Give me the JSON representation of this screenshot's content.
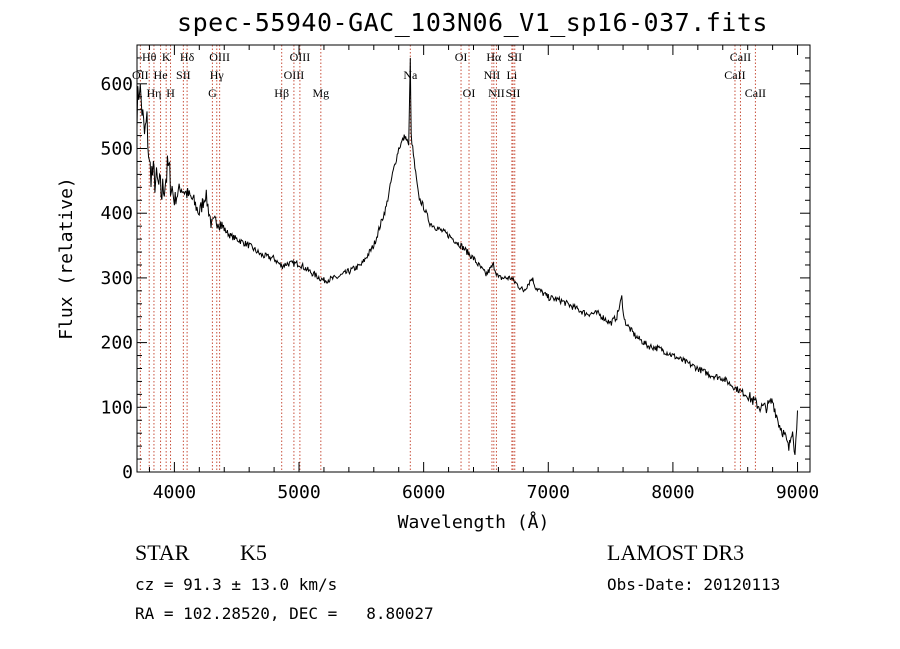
{
  "chart_data": {
    "type": "line",
    "title": "spec-55940-GAC_103N06_V1_sp16-037.fits",
    "xlabel": "Wavelength (Å)",
    "ylabel": "Flux (relative)",
    "xlim": [
      3700,
      9100
    ],
    "ylim": [
      0,
      660
    ],
    "xticks": [
      4000,
      5000,
      6000,
      7000,
      8000,
      9000
    ],
    "yticks": [
      0,
      100,
      200,
      300,
      400,
      500,
      600
    ],
    "grid": false,
    "series": [
      {
        "name": "spectrum",
        "x": [
          3700,
          3720,
          3740,
          3760,
          3780,
          3800,
          3850,
          3900,
          3950,
          4000,
          4050,
          4100,
          4150,
          4200,
          4250,
          4300,
          4350,
          4400,
          4450,
          4500,
          4600,
          4700,
          4800,
          4860,
          4900,
          5000,
          5100,
          5200,
          5300,
          5400,
          5500,
          5600,
          5700,
          5750,
          5800,
          5850,
          5880,
          5893,
          5900,
          5930,
          5960,
          6000,
          6050,
          6100,
          6200,
          6300,
          6400,
          6500,
          6560,
          6600,
          6700,
          6800,
          6870,
          6900,
          7000,
          7100,
          7200,
          7300,
          7400,
          7500,
          7550,
          7590,
          7610,
          7640,
          7700,
          7800,
          7900,
          8000,
          8100,
          8200,
          8300,
          8400,
          8500,
          8600,
          8700,
          8750,
          8800,
          8850,
          8900,
          8930,
          8960,
          8980,
          9000
        ],
        "y": [
          560,
          600,
          560,
          520,
          540,
          470,
          450,
          430,
          470,
          420,
          440,
          430,
          420,
          400,
          430,
          380,
          390,
          375,
          365,
          360,
          350,
          335,
          330,
          318,
          322,
          322,
          308,
          296,
          300,
          310,
          320,
          350,
          410,
          460,
          500,
          520,
          505,
          640,
          520,
          470,
          425,
          410,
          385,
          378,
          366,
          350,
          330,
          305,
          320,
          300,
          300,
          280,
          300,
          285,
          270,
          265,
          255,
          245,
          245,
          230,
          240,
          270,
          235,
          225,
          210,
          195,
          190,
          180,
          170,
          160,
          150,
          145,
          130,
          118,
          100,
          100,
          110,
          75,
          55,
          35,
          70,
          25,
          95
        ]
      }
    ],
    "lines": [
      {
        "label": "Hθ",
        "wl": 3798,
        "row": 0
      },
      {
        "label": "OII",
        "wl": 3727,
        "row": 1
      },
      {
        "label": "Hη",
        "wl": 3836,
        "row": 2
      },
      {
        "label": "He",
        "wl": 3889,
        "row": 1
      },
      {
        "label": "K",
        "wl": 3934,
        "row": 0
      },
      {
        "label": "H",
        "wl": 3969,
        "row": 2
      },
      {
        "label": "SII",
        "wl": 4072,
        "row": 1
      },
      {
        "label": "Hδ",
        "wl": 4102,
        "row": 0
      },
      {
        "label": "OIII",
        "wl": 4363,
        "row": 0
      },
      {
        "label": "Hγ",
        "wl": 4340,
        "row": 1
      },
      {
        "label": "G",
        "wl": 4305,
        "row": 2
      },
      {
        "label": "Hβ",
        "wl": 4861,
        "row": 2
      },
      {
        "label": "OIII",
        "wl": 4959,
        "row": 1
      },
      {
        "label": "OIII",
        "wl": 5007,
        "row": 0
      },
      {
        "label": "Mg",
        "wl": 5175,
        "row": 2
      },
      {
        "label": "Na",
        "wl": 5893,
        "row": 1
      },
      {
        "label": "OI",
        "wl": 6300,
        "row": 0
      },
      {
        "label": "OI",
        "wl": 6364,
        "row": 2
      },
      {
        "label": "NII",
        "wl": 6548,
        "row": 1
      },
      {
        "label": "Hα",
        "wl": 6563,
        "row": 0
      },
      {
        "label": "NII",
        "wl": 6584,
        "row": 2
      },
      {
        "label": "SII",
        "wl": 6717,
        "row": 2
      },
      {
        "label": "SII",
        "wl": 6731,
        "row": 0
      },
      {
        "label": "Li",
        "wl": 6708,
        "row": 1
      },
      {
        "label": "CaII",
        "wl": 8498,
        "row": 1
      },
      {
        "label": "CaII",
        "wl": 8542,
        "row": 0
      },
      {
        "label": "CaII",
        "wl": 8662,
        "row": 2
      }
    ]
  },
  "info": {
    "class_label": "STAR",
    "subclass": "K5",
    "survey": "LAMOST DR3",
    "cz": "cz = 91.3 ± 13.0 km/s",
    "obs_date": "Obs-Date: 20120113",
    "coords": "RA = 102.28520, DEC =   8.80027"
  },
  "colors": {
    "spectrum": "#000000",
    "line_marker": "#c8503c"
  }
}
